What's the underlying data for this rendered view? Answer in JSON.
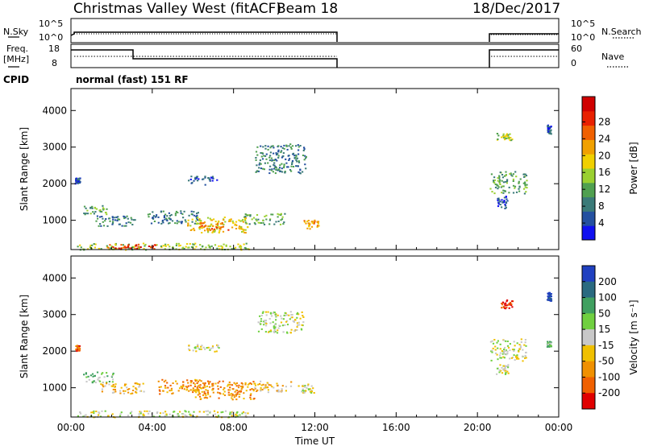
{
  "header": {
    "station_title": "Christmas Valley West (fitACF)",
    "beam_label": "Beam 18",
    "date": "18/Dec/2017"
  },
  "nsky_panel": {
    "left_label": "N.Sky",
    "left_ticks": [
      "10^5",
      "10^0"
    ],
    "right_label": "N.Search",
    "right_ticks": [
      "10^5",
      "10^0"
    ]
  },
  "freq_panel": {
    "left_label_line1": "Freq.",
    "left_label_line2": "[MHz]",
    "left_ticks": [
      "18",
      "8"
    ],
    "right_label": "Nave",
    "right_ticks": [
      "60",
      "0"
    ],
    "cpid_label": "CPID",
    "mode_text": "normal (fast) 151 RF"
  },
  "chart_data": [
    {
      "type": "heatmap",
      "name": "power",
      "ylabel": "Slant Range [km]",
      "yticks": [
        "1000",
        "2000",
        "3000",
        "4000"
      ],
      "ylim": [
        200,
        4600
      ],
      "xlim": [
        0,
        24
      ],
      "xticks": [
        "00:00",
        "04:00",
        "08:00",
        "12:00",
        "16:00",
        "20:00",
        "00:00"
      ],
      "colorbar": {
        "label": "Power [dB]",
        "ticks": [
          "4",
          "8",
          "12",
          "16",
          "20",
          "24",
          "28"
        ],
        "colors": [
          "#1010f0",
          "#2450a0",
          "#3a7a78",
          "#50a050",
          "#9ad030",
          "#f0d000",
          "#f0a000",
          "#f06000",
          "#e82000",
          "#d00000"
        ]
      },
      "blobs": [
        {
          "t": 0.3,
          "r": 2100,
          "w": 0.25,
          "h": 80,
          "c": 1
        },
        {
          "t": 1.2,
          "r": 1300,
          "w": 1.2,
          "h": 120,
          "c": 3
        },
        {
          "t": 2.2,
          "r": 1000,
          "w": 2.0,
          "h": 150,
          "c": 2
        },
        {
          "t": 5.0,
          "r": 1100,
          "w": 2.5,
          "h": 180,
          "c": 2
        },
        {
          "t": 7.2,
          "r": 900,
          "w": 3.0,
          "h": 220,
          "c": 5
        },
        {
          "t": 7.0,
          "r": 850,
          "w": 1.5,
          "h": 100,
          "c": 7
        },
        {
          "t": 9.5,
          "r": 1050,
          "w": 2.0,
          "h": 150,
          "c": 3
        },
        {
          "t": 11.8,
          "r": 900,
          "w": 0.8,
          "h": 120,
          "c": 6
        },
        {
          "t": 10.3,
          "r": 2700,
          "w": 2.5,
          "h": 400,
          "c": 2
        },
        {
          "t": 6.5,
          "r": 2100,
          "w": 1.5,
          "h": 120,
          "c": 1
        },
        {
          "t": 4.5,
          "r": 300,
          "w": 8.5,
          "h": 90,
          "c": 4
        },
        {
          "t": 3.0,
          "r": 300,
          "w": 2.5,
          "h": 60,
          "c": 8
        },
        {
          "t": 21.5,
          "r": 2050,
          "w": 1.8,
          "h": 300,
          "c": 3
        },
        {
          "t": 21.3,
          "r": 3300,
          "w": 0.8,
          "h": 120,
          "c": 4
        },
        {
          "t": 21.2,
          "r": 1500,
          "w": 0.5,
          "h": 180,
          "c": 1
        },
        {
          "t": 23.5,
          "r": 3500,
          "w": 0.2,
          "h": 120,
          "c": 1
        }
      ]
    },
    {
      "type": "heatmap",
      "name": "velocity",
      "ylabel": "Slant Range [km]",
      "xlabel": "Time UT",
      "yticks": [
        "1000",
        "2000",
        "3000",
        "4000"
      ],
      "ylim": [
        200,
        4600
      ],
      "xlim": [
        0,
        24
      ],
      "xticks": [
        "00:00",
        "04:00",
        "08:00",
        "12:00",
        "16:00",
        "20:00",
        "00:00"
      ],
      "colorbar": {
        "label": "Velocity [m s⁻¹]",
        "ticks": [
          "200",
          "100",
          "50",
          "15",
          "-15",
          "-50",
          "-100",
          "-200"
        ],
        "colors": [
          "#2040c0",
          "#2a6a80",
          "#40a060",
          "#70d040",
          "#c8c8c8",
          "#f0c000",
          "#f09000",
          "#f06000",
          "#e00000"
        ]
      },
      "blobs": [
        {
          "t": 0.3,
          "r": 2100,
          "w": 0.2,
          "h": 80,
          "c": 7
        },
        {
          "t": 1.3,
          "r": 1300,
          "w": 1.5,
          "h": 150,
          "c": 3
        },
        {
          "t": 2.5,
          "r": 1000,
          "w": 2.2,
          "h": 150,
          "c": 5
        },
        {
          "t": 5.5,
          "r": 1050,
          "w": 2.5,
          "h": 200,
          "c": 6
        },
        {
          "t": 7.5,
          "r": 950,
          "w": 3.0,
          "h": 250,
          "c": 6
        },
        {
          "t": 9.8,
          "r": 1050,
          "w": 2.0,
          "h": 150,
          "c": 5
        },
        {
          "t": 11.5,
          "r": 1000,
          "w": 1.0,
          "h": 120,
          "c": 4
        },
        {
          "t": 4.5,
          "r": 300,
          "w": 8.5,
          "h": 90,
          "c": 4
        },
        {
          "t": 10.3,
          "r": 2800,
          "w": 2.3,
          "h": 300,
          "c": 4
        },
        {
          "t": 6.5,
          "r": 2100,
          "w": 1.5,
          "h": 100,
          "c": 4
        },
        {
          "t": 21.5,
          "r": 2050,
          "w": 1.8,
          "h": 300,
          "c": 4
        },
        {
          "t": 21.4,
          "r": 3300,
          "w": 0.6,
          "h": 120,
          "c": 8
        },
        {
          "t": 21.2,
          "r": 1500,
          "w": 0.6,
          "h": 150,
          "c": 4
        },
        {
          "t": 23.5,
          "r": 2200,
          "w": 0.2,
          "h": 80,
          "c": 3
        },
        {
          "t": 23.5,
          "r": 3500,
          "w": 0.2,
          "h": 120,
          "c": 0
        }
      ]
    }
  ]
}
